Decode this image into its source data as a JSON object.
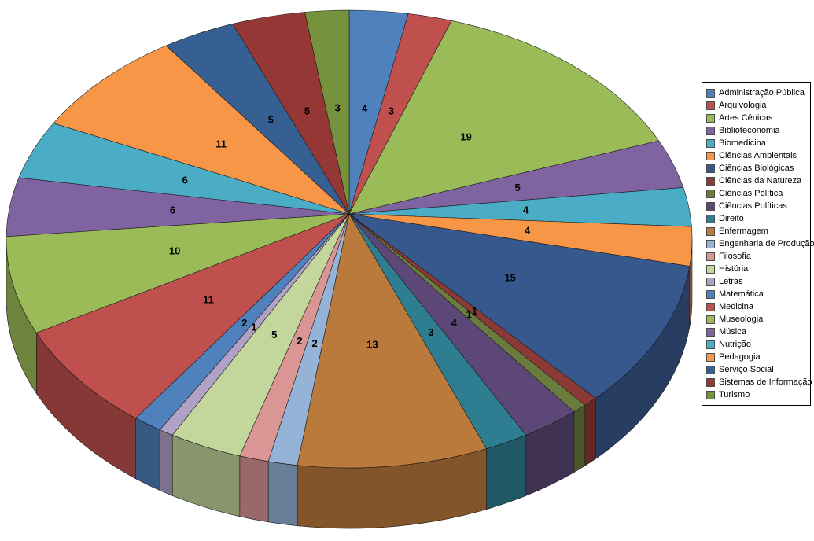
{
  "chart_data": {
    "type": "pie",
    "effect": "3d",
    "title": "",
    "legend_position": "right",
    "background": "#FFFFFF",
    "data_label_color": "#000000",
    "legend_border_color": "#000000",
    "categories": [
      "Administração Pública",
      "Arquivologia",
      "Artes Cênicas",
      "Biblioteconomia",
      "Biomedicina",
      "Ciências Ambientais",
      "Ciências Biológicas",
      "Ciências da Natureza",
      "Ciências Política",
      "Ciências Políticas",
      "Direito",
      "Enfermagem",
      "Engenharia de Produção",
      "Filosofia",
      "História",
      "Letras",
      "Matemática",
      "Medicina",
      "Museologia",
      "Música",
      "Nutrição",
      "Pedagogia",
      "Serviço Social",
      "Sistemas de Informação",
      "Turismo"
    ],
    "values": [
      4,
      3,
      19,
      5,
      4,
      4,
      15,
      1,
      1,
      4,
      3,
      13,
      2,
      2,
      5,
      1,
      2,
      11,
      10,
      6,
      6,
      11,
      5,
      5,
      3
    ],
    "colors": [
      "#4F81BD",
      "#C0504D",
      "#9BBB59",
      "#8064A2",
      "#4BACC6",
      "#F79646",
      "#37588C",
      "#8C3A36",
      "#697C3E",
      "#5C4776",
      "#2E7D91",
      "#B97A3C",
      "#95B3D7",
      "#D99694",
      "#C3D69B",
      "#B2A1C7",
      "#4F81BD",
      "#C0504D",
      "#9BBB59",
      "#8064A2",
      "#4BACC6",
      "#F79646",
      "#376092",
      "#953735",
      "#76923C"
    ]
  }
}
